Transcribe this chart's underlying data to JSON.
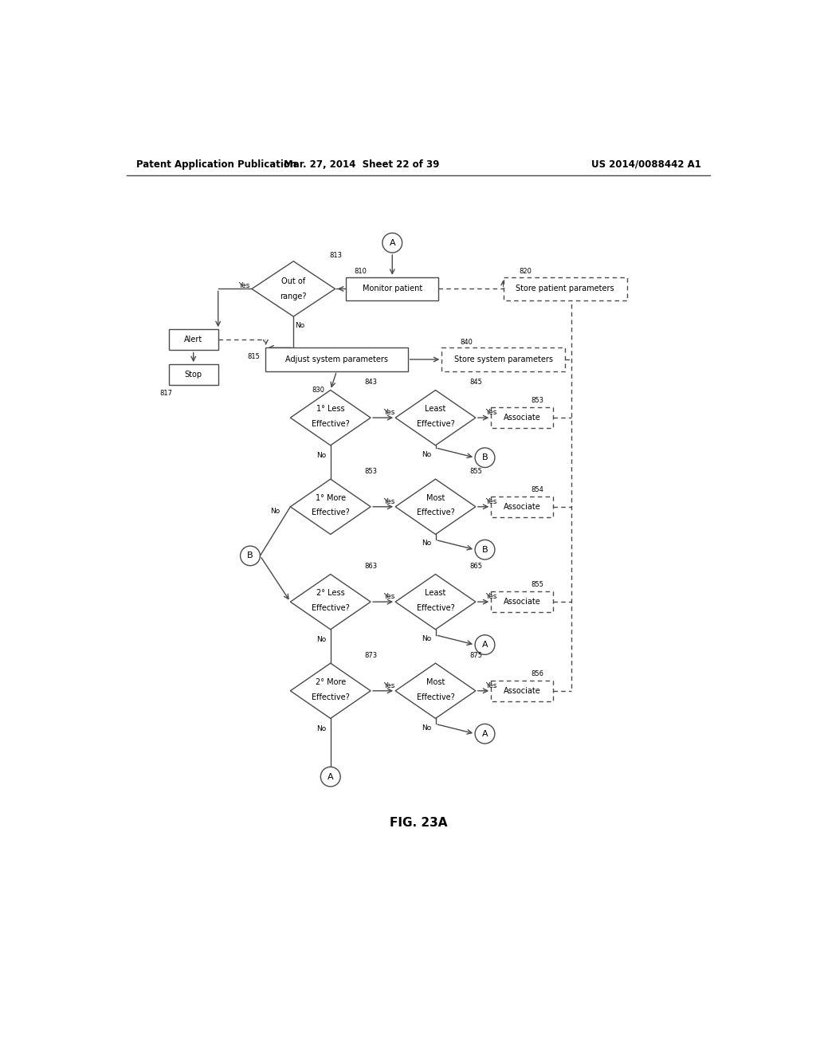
{
  "title": "FIG. 23A",
  "header_left": "Patent Application Publication",
  "header_mid": "Mar. 27, 2014  Sheet 22 of 39",
  "header_right": "US 2014/0088442 A1",
  "bg_color": "#ffffff",
  "line_color": "#4a4a4a",
  "text_color": "#000000",
  "fs_small": 7.0,
  "fs_label": 6.5,
  "fs_num": 6.0
}
